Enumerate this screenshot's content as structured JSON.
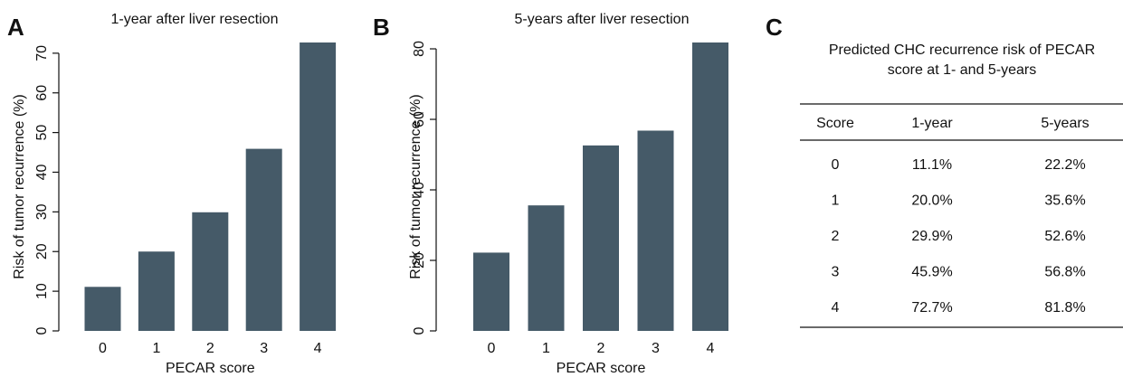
{
  "chart_data": [
    {
      "type": "bar",
      "panel": "A",
      "title": "1-year after liver resection",
      "x_label": "PECAR score",
      "y_label": "Risk of tumor recurrence (%)",
      "categories": [
        "0",
        "1",
        "2",
        "3",
        "4"
      ],
      "values": [
        11.1,
        20.0,
        29.9,
        45.9,
        72.7
      ],
      "color": "#455a68",
      "ylim": [
        0,
        72.7
      ],
      "yticks": [
        0,
        10,
        20,
        30,
        40,
        50,
        60,
        70
      ]
    },
    {
      "type": "bar",
      "panel": "B",
      "title": "5-years after liver resection",
      "x_label": "PECAR score",
      "y_label": "Risk of tumor recurrence (%)",
      "categories": [
        "0",
        "1",
        "2",
        "3",
        "4"
      ],
      "values": [
        22.2,
        35.6,
        52.6,
        56.8,
        81.8
      ],
      "color": "#455a68",
      "ylim": [
        0,
        81.8
      ],
      "yticks": [
        0,
        20,
        40,
        60,
        80
      ]
    }
  ],
  "table": {
    "panel": "C",
    "title": [
      "Predicted CHC recurrence risk of PECAR",
      "score at 1- and 5-years"
    ],
    "columns": [
      "Score",
      "1-year",
      "5-years"
    ],
    "rows": [
      [
        "0",
        "11.1%",
        "22.2%"
      ],
      [
        "1",
        "20.0%",
        "35.6%"
      ],
      [
        "2",
        "29.9%",
        "52.6%"
      ],
      [
        "3",
        "45.9%",
        "56.8%"
      ],
      [
        "4",
        "72.7%",
        "81.8%"
      ]
    ]
  }
}
